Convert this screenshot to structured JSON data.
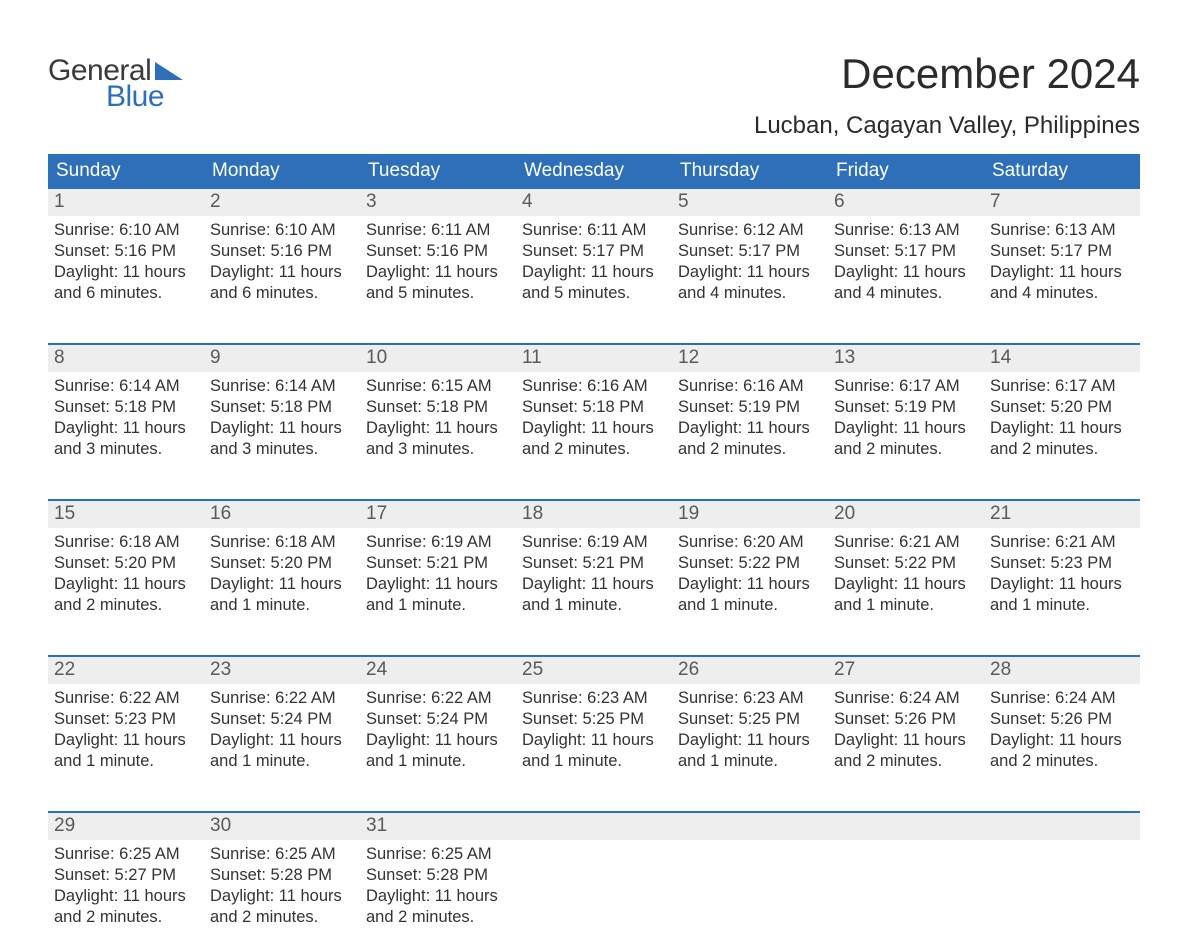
{
  "brand": {
    "word1": "General",
    "word2": "Blue"
  },
  "title": "December 2024",
  "location": "Lucban, Cagayan Valley, Philippines",
  "colors": {
    "header_bg": "#2d6fb8",
    "header_text": "#ffffff",
    "daynum_bg": "#eeeeee",
    "daynum_text": "#5a5a5a",
    "body_text": "#333333",
    "rule": "#2d6fb8"
  },
  "day_names": [
    "Sunday",
    "Monday",
    "Tuesday",
    "Wednesday",
    "Thursday",
    "Friday",
    "Saturday"
  ],
  "weeks": [
    [
      {
        "n": "1",
        "sunrise": "Sunrise: 6:10 AM",
        "sunset": "Sunset: 5:16 PM",
        "day1": "Daylight: 11 hours",
        "day2": "and 6 minutes."
      },
      {
        "n": "2",
        "sunrise": "Sunrise: 6:10 AM",
        "sunset": "Sunset: 5:16 PM",
        "day1": "Daylight: 11 hours",
        "day2": "and 6 minutes."
      },
      {
        "n": "3",
        "sunrise": "Sunrise: 6:11 AM",
        "sunset": "Sunset: 5:16 PM",
        "day1": "Daylight: 11 hours",
        "day2": "and 5 minutes."
      },
      {
        "n": "4",
        "sunrise": "Sunrise: 6:11 AM",
        "sunset": "Sunset: 5:17 PM",
        "day1": "Daylight: 11 hours",
        "day2": "and 5 minutes."
      },
      {
        "n": "5",
        "sunrise": "Sunrise: 6:12 AM",
        "sunset": "Sunset: 5:17 PM",
        "day1": "Daylight: 11 hours",
        "day2": "and 4 minutes."
      },
      {
        "n": "6",
        "sunrise": "Sunrise: 6:13 AM",
        "sunset": "Sunset: 5:17 PM",
        "day1": "Daylight: 11 hours",
        "day2": "and 4 minutes."
      },
      {
        "n": "7",
        "sunrise": "Sunrise: 6:13 AM",
        "sunset": "Sunset: 5:17 PM",
        "day1": "Daylight: 11 hours",
        "day2": "and 4 minutes."
      }
    ],
    [
      {
        "n": "8",
        "sunrise": "Sunrise: 6:14 AM",
        "sunset": "Sunset: 5:18 PM",
        "day1": "Daylight: 11 hours",
        "day2": "and 3 minutes."
      },
      {
        "n": "9",
        "sunrise": "Sunrise: 6:14 AM",
        "sunset": "Sunset: 5:18 PM",
        "day1": "Daylight: 11 hours",
        "day2": "and 3 minutes."
      },
      {
        "n": "10",
        "sunrise": "Sunrise: 6:15 AM",
        "sunset": "Sunset: 5:18 PM",
        "day1": "Daylight: 11 hours",
        "day2": "and 3 minutes."
      },
      {
        "n": "11",
        "sunrise": "Sunrise: 6:16 AM",
        "sunset": "Sunset: 5:18 PM",
        "day1": "Daylight: 11 hours",
        "day2": "and 2 minutes."
      },
      {
        "n": "12",
        "sunrise": "Sunrise: 6:16 AM",
        "sunset": "Sunset: 5:19 PM",
        "day1": "Daylight: 11 hours",
        "day2": "and 2 minutes."
      },
      {
        "n": "13",
        "sunrise": "Sunrise: 6:17 AM",
        "sunset": "Sunset: 5:19 PM",
        "day1": "Daylight: 11 hours",
        "day2": "and 2 minutes."
      },
      {
        "n": "14",
        "sunrise": "Sunrise: 6:17 AM",
        "sunset": "Sunset: 5:20 PM",
        "day1": "Daylight: 11 hours",
        "day2": "and 2 minutes."
      }
    ],
    [
      {
        "n": "15",
        "sunrise": "Sunrise: 6:18 AM",
        "sunset": "Sunset: 5:20 PM",
        "day1": "Daylight: 11 hours",
        "day2": "and 2 minutes."
      },
      {
        "n": "16",
        "sunrise": "Sunrise: 6:18 AM",
        "sunset": "Sunset: 5:20 PM",
        "day1": "Daylight: 11 hours",
        "day2": "and 1 minute."
      },
      {
        "n": "17",
        "sunrise": "Sunrise: 6:19 AM",
        "sunset": "Sunset: 5:21 PM",
        "day1": "Daylight: 11 hours",
        "day2": "and 1 minute."
      },
      {
        "n": "18",
        "sunrise": "Sunrise: 6:19 AM",
        "sunset": "Sunset: 5:21 PM",
        "day1": "Daylight: 11 hours",
        "day2": "and 1 minute."
      },
      {
        "n": "19",
        "sunrise": "Sunrise: 6:20 AM",
        "sunset": "Sunset: 5:22 PM",
        "day1": "Daylight: 11 hours",
        "day2": "and 1 minute."
      },
      {
        "n": "20",
        "sunrise": "Sunrise: 6:21 AM",
        "sunset": "Sunset: 5:22 PM",
        "day1": "Daylight: 11 hours",
        "day2": "and 1 minute."
      },
      {
        "n": "21",
        "sunrise": "Sunrise: 6:21 AM",
        "sunset": "Sunset: 5:23 PM",
        "day1": "Daylight: 11 hours",
        "day2": "and 1 minute."
      }
    ],
    [
      {
        "n": "22",
        "sunrise": "Sunrise: 6:22 AM",
        "sunset": "Sunset: 5:23 PM",
        "day1": "Daylight: 11 hours",
        "day2": "and 1 minute."
      },
      {
        "n": "23",
        "sunrise": "Sunrise: 6:22 AM",
        "sunset": "Sunset: 5:24 PM",
        "day1": "Daylight: 11 hours",
        "day2": "and 1 minute."
      },
      {
        "n": "24",
        "sunrise": "Sunrise: 6:22 AM",
        "sunset": "Sunset: 5:24 PM",
        "day1": "Daylight: 11 hours",
        "day2": "and 1 minute."
      },
      {
        "n": "25",
        "sunrise": "Sunrise: 6:23 AM",
        "sunset": "Sunset: 5:25 PM",
        "day1": "Daylight: 11 hours",
        "day2": "and 1 minute."
      },
      {
        "n": "26",
        "sunrise": "Sunrise: 6:23 AM",
        "sunset": "Sunset: 5:25 PM",
        "day1": "Daylight: 11 hours",
        "day2": "and 1 minute."
      },
      {
        "n": "27",
        "sunrise": "Sunrise: 6:24 AM",
        "sunset": "Sunset: 5:26 PM",
        "day1": "Daylight: 11 hours",
        "day2": "and 2 minutes."
      },
      {
        "n": "28",
        "sunrise": "Sunrise: 6:24 AM",
        "sunset": "Sunset: 5:26 PM",
        "day1": "Daylight: 11 hours",
        "day2": "and 2 minutes."
      }
    ],
    [
      {
        "n": "29",
        "sunrise": "Sunrise: 6:25 AM",
        "sunset": "Sunset: 5:27 PM",
        "day1": "Daylight: 11 hours",
        "day2": "and 2 minutes."
      },
      {
        "n": "30",
        "sunrise": "Sunrise: 6:25 AM",
        "sunset": "Sunset: 5:28 PM",
        "day1": "Daylight: 11 hours",
        "day2": "and 2 minutes."
      },
      {
        "n": "31",
        "sunrise": "Sunrise: 6:25 AM",
        "sunset": "Sunset: 5:28 PM",
        "day1": "Daylight: 11 hours",
        "day2": "and 2 minutes."
      },
      {
        "empty": true
      },
      {
        "empty": true
      },
      {
        "empty": true
      },
      {
        "empty": true
      }
    ]
  ]
}
